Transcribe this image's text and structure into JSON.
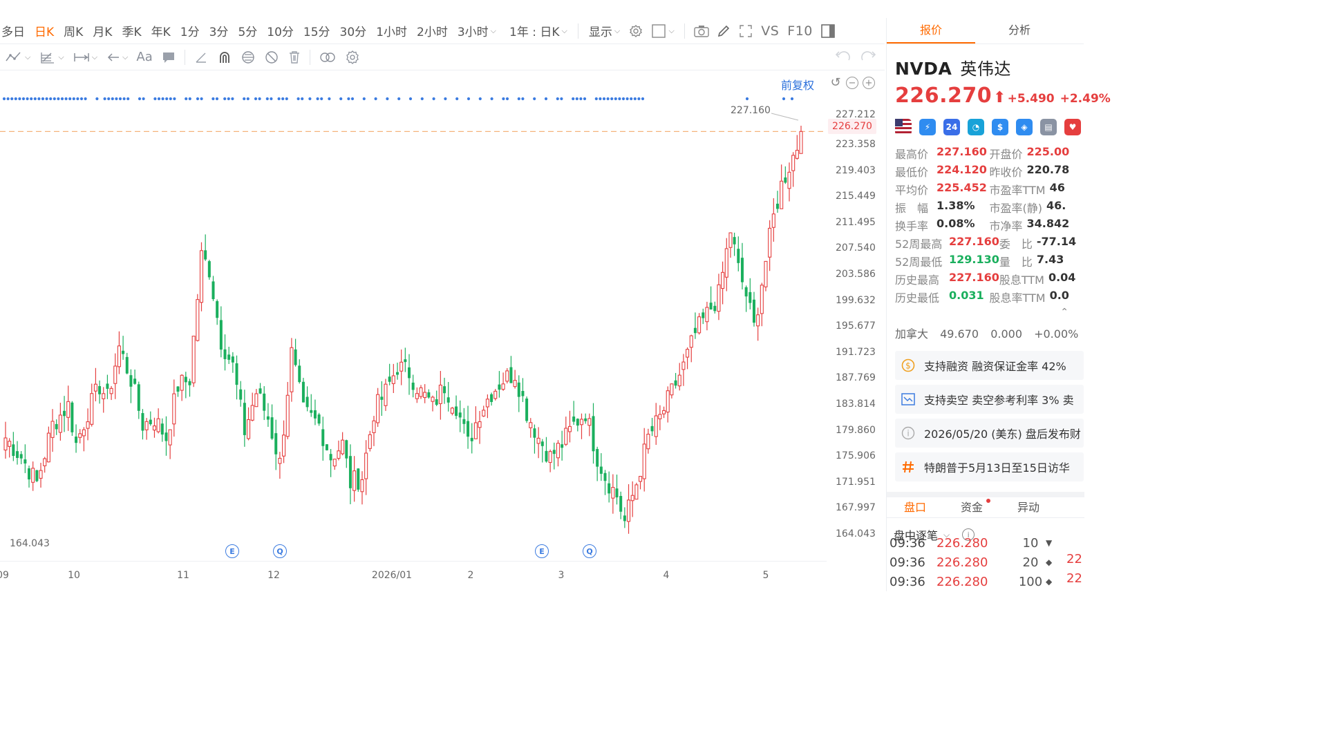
{
  "toolbar": {
    "periods": [
      {
        "label": "多日",
        "active": false
      },
      {
        "label": "日K",
        "active": true
      },
      {
        "label": "周K",
        "active": false
      },
      {
        "label": "月K",
        "active": false
      },
      {
        "label": "季K",
        "active": false
      },
      {
        "label": "年K",
        "active": false
      },
      {
        "label": "1分",
        "active": false
      },
      {
        "label": "3分",
        "active": false
      },
      {
        "label": "5分",
        "active": false
      },
      {
        "label": "10分",
        "active": false
      },
      {
        "label": "15分",
        "active": false
      },
      {
        "label": "30分",
        "active": false
      },
      {
        "label": "1小时",
        "active": false
      },
      {
        "label": "2小时",
        "active": false
      },
      {
        "label": "3小时",
        "active": false
      }
    ],
    "range_label": "1年 : 日K",
    "display_label": "显示",
    "vs_label": "VS",
    "f10_label": "F10"
  },
  "chart": {
    "adjust_label": "前复权",
    "y_labels": [
      "223.358",
      "219.403",
      "215.449",
      "211.495",
      "207.540",
      "203.586",
      "199.632",
      "195.677",
      "191.723",
      "187.769",
      "183.814",
      "179.860",
      "175.906",
      "171.951",
      "167.997",
      "164.043"
    ],
    "y_partial_label": "227.212",
    "last_price_tag": "226.270",
    "high_label": "227.160",
    "low_label": "164.043",
    "x_labels": [
      "09",
      "10",
      "11",
      "12",
      "2026/01",
      "2",
      "3",
      "4",
      "5"
    ],
    "event_markers": [
      "E",
      "Q",
      "E",
      "Q"
    ],
    "colors": {
      "up": "#e53e3e",
      "down": "#1aaf5d",
      "accent": "#ff6a00",
      "event": "#3b7be0"
    }
  },
  "chart_data": {
    "type": "candlestick",
    "ylim": [
      164.043,
      227.16
    ],
    "x_ticks": [
      "09",
      "10",
      "11",
      "12",
      "2026/01",
      "2",
      "3",
      "4",
      "5"
    ],
    "last": 226.27,
    "high": 227.16,
    "low": 164.043,
    "close_path": [
      [
        0,
        179
      ],
      [
        4,
        176
      ],
      [
        8,
        172
      ],
      [
        12,
        181
      ],
      [
        16,
        184
      ],
      [
        18,
        178
      ],
      [
        21,
        183
      ],
      [
        24,
        187
      ],
      [
        26,
        185
      ],
      [
        29,
        193
      ],
      [
        32,
        188
      ],
      [
        35,
        181
      ],
      [
        38,
        182
      ],
      [
        41,
        179
      ],
      [
        44,
        187
      ],
      [
        47,
        188
      ],
      [
        50,
        207
      ],
      [
        52,
        205
      ],
      [
        55,
        194
      ],
      [
        58,
        190
      ],
      [
        61,
        180
      ],
      [
        64,
        186
      ],
      [
        67,
        182
      ],
      [
        70,
        175
      ],
      [
        73,
        192
      ],
      [
        76,
        183
      ],
      [
        80,
        181
      ],
      [
        83,
        176
      ],
      [
        86,
        178
      ],
      [
        88,
        172
      ],
      [
        91,
        173
      ],
      [
        94,
        183
      ],
      [
        97,
        186
      ],
      [
        100,
        190
      ],
      [
        103,
        189
      ],
      [
        106,
        186
      ],
      [
        109,
        184
      ],
      [
        112,
        187
      ],
      [
        115,
        184
      ],
      [
        118,
        178
      ],
      [
        121,
        183
      ],
      [
        124,
        186
      ],
      [
        127,
        188
      ],
      [
        130,
        189
      ],
      [
        133,
        183
      ],
      [
        136,
        179
      ],
      [
        139,
        176
      ],
      [
        142,
        178
      ],
      [
        145,
        181
      ],
      [
        148,
        183
      ],
      [
        151,
        176
      ],
      [
        153,
        173
      ],
      [
        156,
        170
      ],
      [
        158,
        166
      ],
      [
        161,
        172
      ],
      [
        164,
        179
      ],
      [
        167,
        182
      ],
      [
        170,
        186
      ],
      [
        173,
        190
      ],
      [
        176,
        195
      ],
      [
        179,
        198
      ],
      [
        182,
        201
      ],
      [
        185,
        211
      ],
      [
        187,
        205
      ],
      [
        189,
        201
      ],
      [
        191,
        196
      ],
      [
        193,
        203
      ],
      [
        196,
        213
      ],
      [
        198,
        218
      ],
      [
        200,
        221
      ],
      [
        202,
        224
      ],
      [
        203,
        226.27
      ]
    ]
  },
  "panel": {
    "tabs": [
      "报价",
      "分析"
    ],
    "ticker": "NVDA",
    "name": "英伟达",
    "last_price": "226.270",
    "change": "+5.490",
    "change_pct": "+2.49%",
    "badges": [
      {
        "icon": "us-flag-icon",
        "text": "",
        "color": "#b22234"
      },
      {
        "icon": "lightning-icon",
        "text": "⚡",
        "color": "#2f8cf0"
      },
      {
        "icon": "24h-icon",
        "text": "24",
        "color": "#3a6ee8"
      },
      {
        "icon": "refresh-icon",
        "text": "◔",
        "color": "#18a2d8"
      },
      {
        "icon": "dollar-icon",
        "text": "$",
        "color": "#2f8cf0"
      },
      {
        "icon": "tag-icon",
        "text": "◈",
        "color": "#2f8cf0"
      },
      {
        "icon": "document-icon",
        "text": "▤",
        "color": "#8a93a3"
      },
      {
        "icon": "heart-icon",
        "text": "♥",
        "color": "#e53e3e"
      }
    ],
    "stats": [
      {
        "k1": "最高价",
        "v1": "227.160",
        "c1": "red",
        "k2": "开盘价",
        "v2": "225.00",
        "c2": "red"
      },
      {
        "k1": "最低价",
        "v1": "224.120",
        "c1": "red",
        "k2": "昨收价",
        "v2": "220.78",
        "c2": ""
      },
      {
        "k1": "平均价",
        "v1": "225.452",
        "c1": "red",
        "k2": "市盈率TTM",
        "v2": "46",
        "c2": ""
      },
      {
        "k1": "振　幅",
        "v1": "1.38%",
        "c1": "",
        "k2": "市盈率(静)",
        "v2": "46.",
        "c2": ""
      },
      {
        "k1": "换手率",
        "v1": "0.08%",
        "c1": "",
        "k2": "市净率",
        "v2": "34.842",
        "c2": ""
      },
      {
        "k1": "52周最高",
        "v1": "227.160",
        "c1": "red",
        "k2": "委　比",
        "v2": "-77.14",
        "c2": ""
      },
      {
        "k1": "52周最低",
        "v1": "129.130",
        "c1": "green",
        "k2": "量　比",
        "v2": "7.43",
        "c2": ""
      },
      {
        "k1": "历史最高",
        "v1": "227.160",
        "c1": "red",
        "k2": "股息TTM",
        "v2": "0.04",
        "c2": ""
      },
      {
        "k1": "历史最低",
        "v1": "0.031",
        "c1": "green",
        "k2": "股息率TTM",
        "v2": "0.0",
        "c2": ""
      }
    ],
    "canada": {
      "name": "加拿大",
      "price": "49.670",
      "change": "0.000",
      "pct": "+0.00%"
    },
    "info_cards": [
      {
        "icon": "coin-icon",
        "text": "支持融资 融资保证金率 42%"
      },
      {
        "icon": "short-chart-icon",
        "text": "支持卖空 卖空参考利率 3% 卖"
      },
      {
        "icon": "info-icon",
        "text": "2026/05/20 (美东) 盘后发布财"
      },
      {
        "icon": "hashtag-icon",
        "text": "特朗普于5月13日至15日访华"
      }
    ],
    "bottom_tabs": [
      "盘口",
      "资金",
      "异动"
    ],
    "ticks_title": "盘中逐笔",
    "ticks": [
      {
        "time": "09:36",
        "price": "226.280",
        "vol": "10",
        "dir": "▼"
      },
      {
        "time": "09:36",
        "price": "226.280",
        "vol": "20",
        "dir": "◆"
      },
      {
        "time": "09:36",
        "price": "226.280",
        "vol": "100",
        "dir": "◆"
      }
    ],
    "ticks_right": [
      "22",
      "22"
    ]
  }
}
